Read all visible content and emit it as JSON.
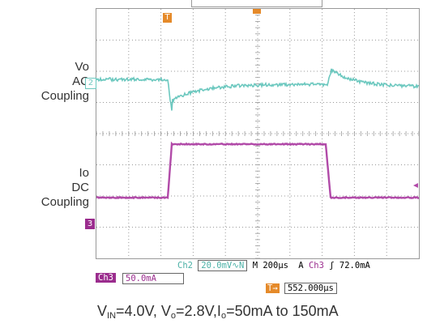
{
  "labels": {
    "vo_line1": "Vo",
    "vo_line2": "AC",
    "vo_line3": "Coupling",
    "io_line1": "Io",
    "io_line2": "DC",
    "io_line3": "Coupling"
  },
  "markers": {
    "ch2": "2",
    "ch3": "3",
    "trigger": "T"
  },
  "status": {
    "ch2_label": "Ch2",
    "ch2_scale": "20.0mV",
    "ch2_coupling_glyph": "∿",
    "bw_limit": "N",
    "time_label": "M",
    "time_scale": "200µs",
    "trigger_mode": "A",
    "trig_ch": "Ch3",
    "trig_slope": "ʃ",
    "trig_level": "72.0mA",
    "ch3_label": "Ch3",
    "ch3_scale": "50.0mA",
    "delay_icon": "T→",
    "delay_value": "552.000µs"
  },
  "caption": {
    "v_in": "V",
    "v_in_sub": "IN",
    "v_in_val": "=4.0V, V",
    "v_o_sub": "o",
    "v_o_val": "=2.8V,I",
    "i_o_sub": "o",
    "i_o_val": "=50mA to 150mA"
  },
  "colors": {
    "ch2": "#6cc8bf",
    "ch3": "#b14aa8",
    "trigger": "#e58a2a",
    "grid": "#9a9a9a"
  }
}
